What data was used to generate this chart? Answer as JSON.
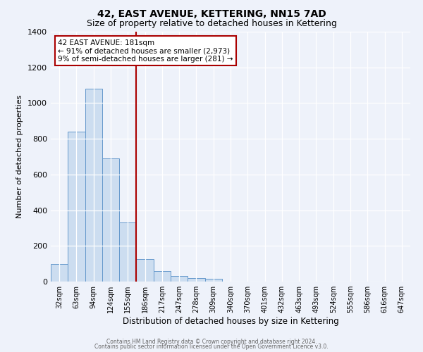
{
  "title": "42, EAST AVENUE, KETTERING, NN15 7AD",
  "subtitle": "Size of property relative to detached houses in Kettering",
  "xlabel": "Distribution of detached houses by size in Kettering",
  "ylabel": "Number of detached properties",
  "bin_labels": [
    "32sqm",
    "63sqm",
    "94sqm",
    "124sqm",
    "155sqm",
    "186sqm",
    "217sqm",
    "247sqm",
    "278sqm",
    "309sqm",
    "340sqm",
    "370sqm",
    "401sqm",
    "432sqm",
    "463sqm",
    "493sqm",
    "524sqm",
    "555sqm",
    "586sqm",
    "616sqm",
    "647sqm"
  ],
  "bar_heights": [
    100,
    840,
    1080,
    690,
    330,
    125,
    60,
    30,
    20,
    15,
    0,
    0,
    0,
    0,
    0,
    0,
    0,
    0,
    0,
    0,
    0
  ],
  "bar_color": "#ccddf0",
  "bar_edge_color": "#6699cc",
  "vline_x_index": 5,
  "vline_color": "#aa0000",
  "ylim": [
    0,
    1400
  ],
  "yticks": [
    0,
    200,
    400,
    600,
    800,
    1000,
    1200,
    1400
  ],
  "annotation_line1": "42 EAST AVENUE: 181sqm",
  "annotation_line2": "← 91% of detached houses are smaller (2,973)",
  "annotation_line3": "9% of semi-detached houses are larger (281) →",
  "footer1": "Contains HM Land Registry data © Crown copyright and database right 2024.",
  "footer2": "Contains public sector information licensed under the Open Government Licence v3.0.",
  "background_color": "#eef2fa",
  "grid_color": "#ffffff",
  "title_fontsize": 10,
  "subtitle_fontsize": 9
}
